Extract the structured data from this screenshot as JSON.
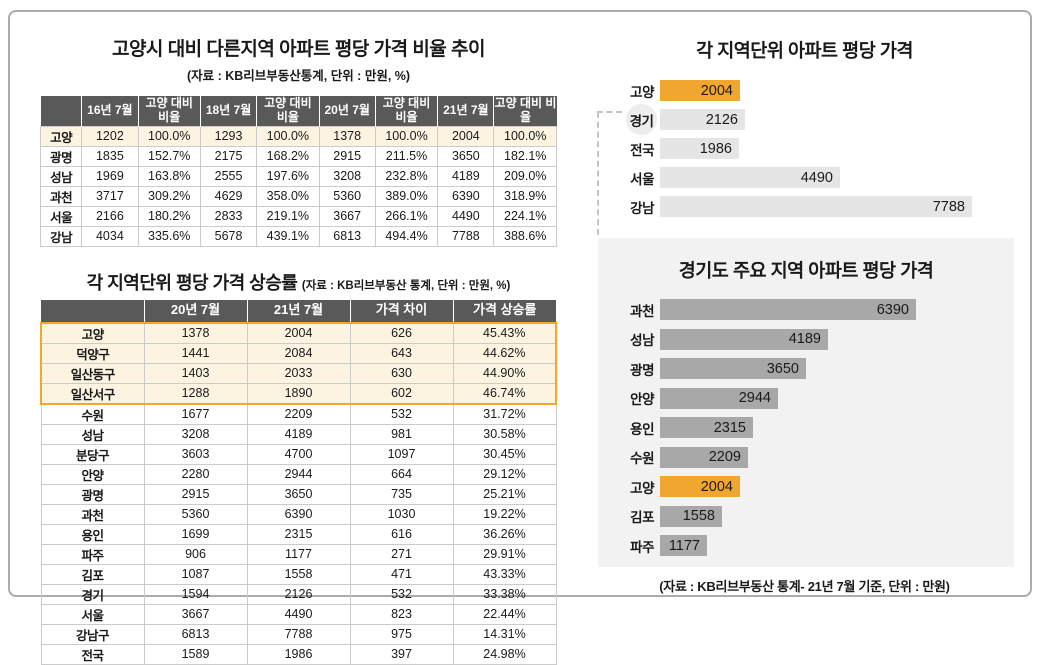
{
  "colors": {
    "highlight_orange": "#F1A72F",
    "highlight_border_orange": "#F3A62C",
    "highlight_row_cream": "#FCF3E1",
    "table_header_gray": "#595959",
    "bar_gray_light": "#E5E5E5",
    "bar_gray_dark": "#A8A8A8",
    "panel_gray": "#F2F2F2"
  },
  "chart_data": [
    {
      "type": "table",
      "title": "고양시 대비 다른지역 아파트 평당 가격 비율 추이",
      "source_note": "(자료 : KB리브부동산통계, 단위 : 만원, %)",
      "columns": [
        "",
        "16년 7월",
        "고양 대비 비율",
        "18년 7월",
        "고양 대비 비율",
        "20년 7월",
        "고양 대비 비율",
        "21년 7월",
        "고양 대비 비율"
      ],
      "rows": [
        {
          "label": "고양",
          "highlight": true,
          "values": [
            "1202",
            "100.0%",
            "1293",
            "100.0%",
            "1378",
            "100.0%",
            "2004",
            "100.0%"
          ]
        },
        {
          "label": "광명",
          "values": [
            "1835",
            "152.7%",
            "2175",
            "168.2%",
            "2915",
            "211.5%",
            "3650",
            "182.1%"
          ]
        },
        {
          "label": "성남",
          "values": [
            "1969",
            "163.8%",
            "2555",
            "197.6%",
            "3208",
            "232.8%",
            "4189",
            "209.0%"
          ]
        },
        {
          "label": "과천",
          "values": [
            "3717",
            "309.2%",
            "4629",
            "358.0%",
            "5360",
            "389.0%",
            "6390",
            "318.9%"
          ]
        },
        {
          "label": "서울",
          "values": [
            "2166",
            "180.2%",
            "2833",
            "219.1%",
            "3667",
            "266.1%",
            "4490",
            "224.1%"
          ]
        },
        {
          "label": "강남",
          "values": [
            "4034",
            "335.6%",
            "5678",
            "439.1%",
            "6813",
            "494.4%",
            "7788",
            "388.6%"
          ]
        }
      ]
    },
    {
      "type": "table",
      "title": "각 지역단위 평당 가격 상승률",
      "source_note": "(자료 : KB리브부동산 통계, 단위 : 만원, %)",
      "columns": [
        "",
        "20년 7월",
        "21년 7월",
        "가격 차이",
        "가격 상승률"
      ],
      "rows": [
        {
          "label": "고양",
          "highlight": true,
          "values": [
            "1378",
            "2004",
            "626",
            "45.43%"
          ]
        },
        {
          "label": "덕양구",
          "highlight": true,
          "values": [
            "1441",
            "2084",
            "643",
            "44.62%"
          ]
        },
        {
          "label": "일산동구",
          "highlight": true,
          "values": [
            "1403",
            "2033",
            "630",
            "44.90%"
          ]
        },
        {
          "label": "일산서구",
          "highlight": true,
          "values": [
            "1288",
            "1890",
            "602",
            "46.74%"
          ]
        },
        {
          "label": "수원",
          "values": [
            "1677",
            "2209",
            "532",
            "31.72%"
          ]
        },
        {
          "label": "성남",
          "values": [
            "3208",
            "4189",
            "981",
            "30.58%"
          ]
        },
        {
          "label": "분당구",
          "values": [
            "3603",
            "4700",
            "1097",
            "30.45%"
          ]
        },
        {
          "label": "안양",
          "values": [
            "2280",
            "2944",
            "664",
            "29.12%"
          ]
        },
        {
          "label": "광명",
          "values": [
            "2915",
            "3650",
            "735",
            "25.21%"
          ]
        },
        {
          "label": "과천",
          "values": [
            "5360",
            "6390",
            "1030",
            "19.22%"
          ]
        },
        {
          "label": "용인",
          "values": [
            "1699",
            "2315",
            "616",
            "36.26%"
          ]
        },
        {
          "label": "파주",
          "values": [
            "906",
            "1177",
            "271",
            "29.91%"
          ]
        },
        {
          "label": "김포",
          "values": [
            "1087",
            "1558",
            "471",
            "43.33%"
          ]
        },
        {
          "label": "경기",
          "values": [
            "1594",
            "2126",
            "532",
            "33.38%"
          ]
        },
        {
          "label": "서울",
          "values": [
            "3667",
            "4490",
            "823",
            "22.44%"
          ]
        },
        {
          "label": "강남구",
          "values": [
            "6813",
            "7788",
            "975",
            "14.31%"
          ]
        },
        {
          "label": "전국",
          "values": [
            "1589",
            "1986",
            "397",
            "24.98%"
          ]
        }
      ]
    },
    {
      "type": "bar",
      "orientation": "horizontal",
      "title": "각 지역단위 아파트 평당 가격",
      "categories": [
        "고양",
        "경기",
        "전국",
        "서울",
        "강남"
      ],
      "values": [
        2004,
        2126,
        1986,
        4490,
        7788
      ],
      "highlight_category": "고양",
      "circled_category": "경기",
      "unit": "만원",
      "xlim": [
        0,
        8800
      ],
      "grid": false,
      "value_labels": "inside-right"
    },
    {
      "type": "bar",
      "orientation": "horizontal",
      "title": "경기도 주요 지역 아파트 평당 가격",
      "categories": [
        "과천",
        "성남",
        "광명",
        "안양",
        "용인",
        "수원",
        "고양",
        "김포",
        "파주"
      ],
      "values": [
        6390,
        4189,
        3650,
        2944,
        2315,
        2209,
        2004,
        1558,
        1177
      ],
      "highlight_category": "고양",
      "unit": "만원",
      "xlim": [
        0,
        8800
      ],
      "grid": false,
      "value_labels": "inside-right",
      "source_note": "(자료 : KB리브부동산 통계- 21년 7월 기준, 단위 : 만원)"
    }
  ]
}
